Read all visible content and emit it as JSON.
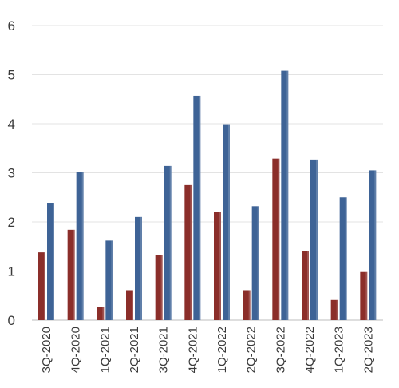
{
  "chart_data": {
    "type": "bar",
    "categories": [
      "3Q-2020",
      "4Q-2020",
      "1Q-2021",
      "2Q-2021",
      "3Q-2021",
      "4Q-2021",
      "1Q-2022",
      "2Q-2022",
      "3Q-2022",
      "4Q-2022",
      "1Q-2023",
      "2Q-2023"
    ],
    "series": [
      {
        "color": "#8b2e2a",
        "values": [
          1.38,
          1.84,
          0.27,
          0.61,
          1.32,
          2.75,
          2.21,
          0.61,
          3.29,
          1.41,
          0.41,
          0.98
        ]
      },
      {
        "color": "#3e6396",
        "values": [
          2.39,
          3.01,
          1.62,
          2.1,
          3.14,
          4.57,
          3.99,
          2.32,
          5.08,
          3.27,
          2.5,
          3.05
        ]
      }
    ],
    "yticks": [
      0,
      1,
      2,
      3,
      4,
      5,
      6
    ],
    "ylim": [
      0,
      6
    ],
    "grid": true,
    "legend": "none"
  }
}
